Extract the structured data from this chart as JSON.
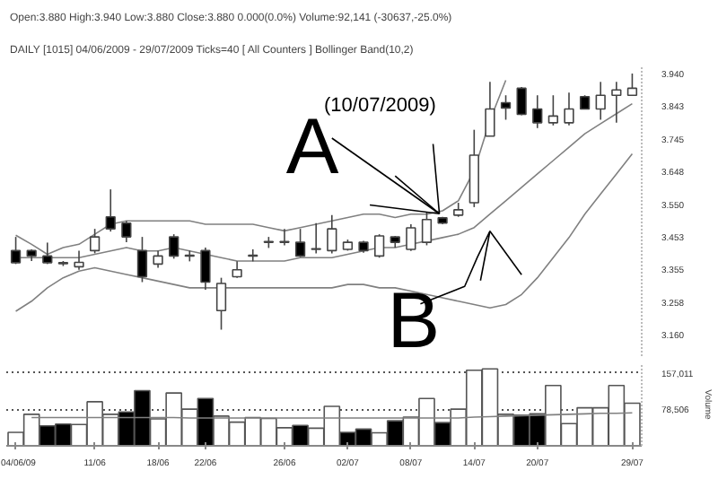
{
  "chart_data": [
    {
      "type": "candlestick",
      "title": "Open:3.880  High:3.940  Low:3.880  Close:3.880  0.000(0.0%)  Volume:92,141 (-30637,-25.0%)",
      "subtitle": "DAILY  [1015] 04/06/2009 - 29/07/2009  Ticks=40  [ All Counters ]  Bollinger Band(10,2)",
      "categories": [
        null,
        null,
        null,
        null,
        null,
        null,
        null,
        null,
        null,
        null,
        null,
        null,
        null,
        null,
        null,
        null,
        null,
        null,
        null,
        null,
        null,
        null,
        null,
        null,
        null,
        null,
        null,
        null,
        null,
        null,
        null,
        null,
        null,
        null,
        null,
        null,
        null,
        null,
        null,
        null
      ],
      "ohlc": [
        [
          3.411,
          3.452,
          3.371,
          3.375
        ],
        [
          3.411,
          3.415,
          3.38,
          3.395
        ],
        [
          3.395,
          3.435,
          3.371,
          3.375
        ],
        [
          3.372,
          3.38,
          3.365,
          3.375
        ],
        [
          3.363,
          3.411,
          3.354,
          3.376
        ],
        [
          3.411,
          3.476,
          3.403,
          3.452
        ],
        [
          3.512,
          3.594,
          3.468,
          3.476
        ],
        [
          3.493,
          3.5,
          3.436,
          3.452
        ],
        [
          3.411,
          3.452,
          3.317,
          3.333
        ],
        [
          3.371,
          3.411,
          3.36,
          3.395
        ],
        [
          3.452,
          3.46,
          3.387,
          3.395
        ],
        [
          3.395,
          3.411,
          3.379,
          3.397
        ],
        [
          3.411,
          3.42,
          3.294,
          3.317
        ],
        [
          3.232,
          3.33,
          3.175,
          3.313
        ],
        [
          3.333,
          3.379,
          3.33,
          3.354
        ],
        [
          3.395,
          3.415,
          3.379,
          3.397
        ],
        [
          3.436,
          3.452,
          3.419,
          3.438
        ],
        [
          3.436,
          3.476,
          3.427,
          3.438
        ],
        [
          3.436,
          3.476,
          3.392,
          3.395
        ],
        [
          3.415,
          3.493,
          3.403,
          3.417
        ],
        [
          3.411,
          3.517,
          3.403,
          3.476
        ],
        [
          3.415,
          3.444,
          3.411,
          3.436
        ],
        [
          3.436,
          3.44,
          3.405,
          3.411
        ],
        [
          3.395,
          3.46,
          3.39,
          3.455
        ],
        [
          3.452,
          3.455,
          3.42,
          3.436
        ],
        [
          3.415,
          3.49,
          3.41,
          3.479
        ],
        [
          3.436,
          3.525,
          3.427,
          3.504
        ],
        [
          3.509,
          3.512,
          3.49,
          3.493
        ],
        [
          3.517,
          3.554,
          3.512,
          3.533
        ],
        [
          3.554,
          3.772,
          3.541,
          3.696
        ],
        [
          3.753,
          3.915,
          3.753,
          3.834
        ],
        [
          3.853,
          3.875,
          3.802,
          3.837
        ],
        [
          3.896,
          3.9,
          3.815,
          3.818
        ],
        [
          3.834,
          3.875,
          3.777,
          3.793
        ],
        [
          3.793,
          3.875,
          3.785,
          3.813
        ],
        [
          3.793,
          3.883,
          3.785,
          3.834
        ],
        [
          3.871,
          3.875,
          3.834,
          3.834
        ],
        [
          3.834,
          3.915,
          3.802,
          3.875
        ],
        [
          3.875,
          3.915,
          3.793,
          3.891
        ],
        [
          3.875,
          3.94,
          3.875,
          3.896
        ]
      ],
      "series": [
        {
          "type": "line",
          "color": "#808080",
          "values": [
            3.457,
            3.43,
            3.4,
            3.42,
            3.43,
            3.46,
            3.49,
            3.5,
            3.5,
            3.5,
            3.5,
            3.5,
            3.49,
            3.49,
            3.49,
            3.49,
            3.48,
            3.47,
            3.48,
            3.49,
            3.5,
            3.51,
            3.52,
            3.52,
            3.51,
            3.52,
            3.52,
            3.53,
            3.56,
            3.65,
            3.8,
            3.92,
            null,
            null,
            null,
            null,
            null,
            null,
            null,
            null
          ]
        },
        {
          "type": "line",
          "color": "#808080",
          "values": [
            3.39,
            3.39,
            3.39,
            3.39,
            3.39,
            3.4,
            3.41,
            3.42,
            3.41,
            3.41,
            3.42,
            3.41,
            3.4,
            3.39,
            3.38,
            3.38,
            3.38,
            3.38,
            3.39,
            3.39,
            3.39,
            3.4,
            3.41,
            3.42,
            3.42,
            3.43,
            3.44,
            3.45,
            3.46,
            3.48,
            3.52,
            3.56,
            3.6,
            3.64,
            3.68,
            3.72,
            3.76,
            3.79,
            3.82,
            3.85
          ]
        },
        {
          "type": "line",
          "color": "#808080",
          "values": [
            3.23,
            3.26,
            3.3,
            3.33,
            3.35,
            3.36,
            3.35,
            3.34,
            3.33,
            3.32,
            3.31,
            3.3,
            3.3,
            3.3,
            3.3,
            3.3,
            3.3,
            3.3,
            3.3,
            3.3,
            3.3,
            3.31,
            3.31,
            3.3,
            3.3,
            3.29,
            3.28,
            3.27,
            3.26,
            3.25,
            3.24,
            3.25,
            3.28,
            3.33,
            3.39,
            3.45,
            3.52,
            3.58,
            3.64,
            3.7
          ]
        }
      ],
      "ylim": [
        3.096,
        3.964
      ],
      "yticks": [
        {
          "value": 3.94,
          "label": "3.940"
        },
        3.843,
        3.745,
        3.648,
        {
          "value": 3.55,
          "label": "3.550"
        },
        3.453,
        3.355,
        3.258,
        {
          "value": 3.16,
          "label": "3.160"
        }
      ],
      "tick_labels": "y",
      "annotations": [
        "A",
        "(10/07/2009)",
        "B"
      ]
    },
    {
      "type": "bar",
      "ylabel": "Volume",
      "categories": [
        "04/06/09",
        null,
        null,
        null,
        null,
        "11/06",
        null,
        null,
        null,
        "18/06",
        null,
        null,
        "22/06",
        null,
        null,
        null,
        null,
        "26/06",
        null,
        null,
        null,
        "02/07",
        null,
        null,
        null,
        "08/07",
        null,
        null,
        null,
        "14/07",
        null,
        null,
        null,
        "20/07",
        null,
        null,
        null,
        null,
        null,
        "29/07"
      ],
      "series": [
        {
          "type": "bar",
          "values": [
            29000,
            68000,
            43000,
            47000,
            46000,
            95000,
            68000,
            73000,
            119000,
            58000,
            114000,
            79000,
            102000,
            64000,
            51000,
            61000,
            59000,
            39000,
            44000,
            38000,
            85000,
            29000,
            36000,
            28000,
            54000,
            62000,
            102000,
            50000,
            79000,
            163000,
            166000,
            68000,
            66000,
            69000,
            130000,
            48000,
            82000,
            82000,
            130000,
            92000
          ],
          "colors": [
            "#ffffff",
            "#ffffff",
            "#000000",
            "#000000",
            "#ffffff",
            "#ffffff",
            "#ffffff",
            "#000000",
            "#000000",
            "#ffffff",
            "#ffffff",
            "#ffffff",
            "#000000",
            "#ffffff",
            "#ffffff",
            "#ffffff",
            "#ffffff",
            "#ffffff",
            "#000000",
            "#ffffff",
            "#ffffff",
            "#000000",
            "#000000",
            "#ffffff",
            "#000000",
            "#ffffff",
            "#ffffff",
            "#000000",
            "#ffffff",
            "#ffffff",
            "#ffffff",
            "#ffffff",
            "#000000",
            "#000000",
            "#ffffff",
            "#ffffff",
            "#ffffff",
            "#ffffff",
            "#ffffff",
            "#ffffff"
          ]
        },
        {
          "type": "line",
          "color": "#808080",
          "values": [
            null,
            61000,
            61000,
            61000,
            61000,
            61000,
            61000,
            61000,
            61000,
            61000,
            61000,
            60000,
            60000,
            60000,
            60000,
            60000,
            60000,
            60000,
            60000,
            60000,
            60000,
            60000,
            60000,
            60000,
            60000,
            60000,
            60000,
            60000,
            60000,
            62000,
            63000,
            64000,
            65000,
            66000,
            67000,
            68000,
            69000,
            70000,
            70000,
            71000
          ]
        }
      ],
      "ylim": [
        0,
        178000
      ],
      "yticks": [
        {
          "value": 78506,
          "label": "78,506"
        },
        {
          "value": 157011,
          "label": "157,011"
        }
      ],
      "grid": "y"
    }
  ]
}
